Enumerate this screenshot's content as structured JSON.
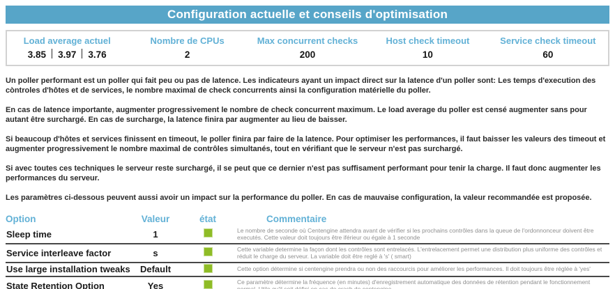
{
  "title": "Configuration actuelle et conseils d'optimisation",
  "colors": {
    "header_bar_bg": "#57a5c8",
    "accent_blue": "#62b1d6",
    "status_ok_green": "#8fbc26",
    "comment_gray": "#8f8f8f"
  },
  "summary": {
    "load_values": [
      "3.85",
      "3.97",
      "3.76"
    ],
    "columns": [
      {
        "label": "Load average actuel"
      },
      {
        "label": "Nombre de CPUs",
        "value": "2"
      },
      {
        "label": "Max concurrent checks",
        "value": "200"
      },
      {
        "label": "Host check timeout",
        "value": "10"
      },
      {
        "label": "Service check timeout",
        "value": "60"
      }
    ]
  },
  "paragraphs": [
    "Un poller performant est un poller qui fait peu ou pas de latence. Les indicateurs ayant un impact direct sur la latence d'un poller sont: Les temps d'execution des còntroles d'hôtes et de services, le nombre maximal de check concurrents ainsi la configuration matérielle du poller.",
    "En cas de latence importante, augmenter progressivement le nombre de check concurrent maximum. Le load average du poller est censé augmenter sans pour autant être surchargé. En cas de surcharge, la latence finira par augmenter au lieu de baisser.",
    "Si beaucoup d'hôtes et services finissent en timeout, le poller finira par faire de la latence. Pour optimiser les performances, il faut baisser les valeurs des timeout et augmenter progressivement le nombre maximal de contrôles simultanés, tout en vérifiant que le serveur n'est pas surchargé.",
    "Si avec toutes ces techniques le serveur reste surchargé, il se peut que ce dernier n'est pas suffisament performant pour tenir la charge. Il faut donc augmenter les performances du serveur.",
    "Les paramètres ci-dessous peuvent aussi avoir un impact sur la performance du poller. En cas de mauvaise configuration, la valeur recommandée est proposée."
  ],
  "options": {
    "headers": {
      "option": "Option",
      "valeur": "Valeur",
      "etat": "état",
      "commentaire": "Commentaire"
    },
    "rows": [
      {
        "option": "Sleep time",
        "value": "1",
        "status": "ok",
        "comment": "Le nombre de seconde où Centengine attendra avant de vérifier si les prochains contrôles dans la queue de l'ordonnonceur doivent être executés. Cette valeur doit toujours être iférieur ou égale à 1 seconde"
      },
      {
        "option": "Service interleave factor",
        "value": "s",
        "status": "ok",
        "comment": "Cette variable determine la façon dont les contrôles sont entrelacés. L'entrelacement permet une distribution plus uniforme des contrôles et réduit le charge du serveur. La variable doit être reglé à 's' ( smart)"
      },
      {
        "option": "Use large installation tweaks",
        "value": "Default",
        "status": "ok",
        "comment": "Cette option détermine si centengine prendra ou non des raccourcis pour améliorer les performances. Il doit toujours être réglée à 'yes'"
      },
      {
        "option": "State Retention Option",
        "value": "Yes",
        "status": "ok",
        "comment": "Ce paramètre détermine la fréquence (en minutes) d'enregistrement automatique des données de rétention pendant le fonctionnement normal. Utile qu'il soit défini en cas de crash de centengine."
      }
    ]
  }
}
